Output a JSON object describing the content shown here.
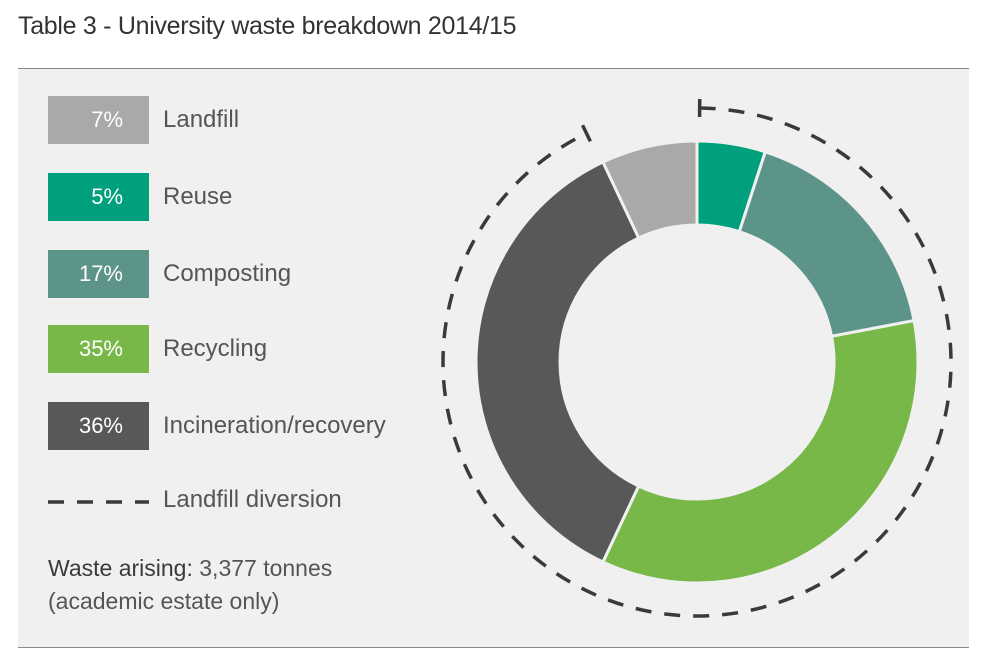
{
  "title": "Table 3 - University waste breakdown 2014/15",
  "chart_data": {
    "type": "pie",
    "variant": "donut",
    "categories": [
      "Landfill",
      "Reuse",
      "Composting",
      "Recycling",
      "Incineration/recovery"
    ],
    "values": [
      7,
      5,
      17,
      35,
      36
    ],
    "labels": [
      "7%",
      "5%",
      "17%",
      "35%",
      "36%"
    ],
    "colors": [
      "#a9a9a9",
      "#00a07c",
      "#5d9489",
      "#77b848",
      "#58585a"
    ],
    "diversion": {
      "label": "Landfill diversion",
      "covers": [
        "Reuse",
        "Composting",
        "Recycling",
        "Incineration/recovery"
      ],
      "color": "#3a3a3a"
    },
    "legend_position": "left"
  },
  "footer": {
    "arising_label": "Waste arising:",
    "arising_value": "3,377 tonnes",
    "scope": "(academic estate only)"
  }
}
